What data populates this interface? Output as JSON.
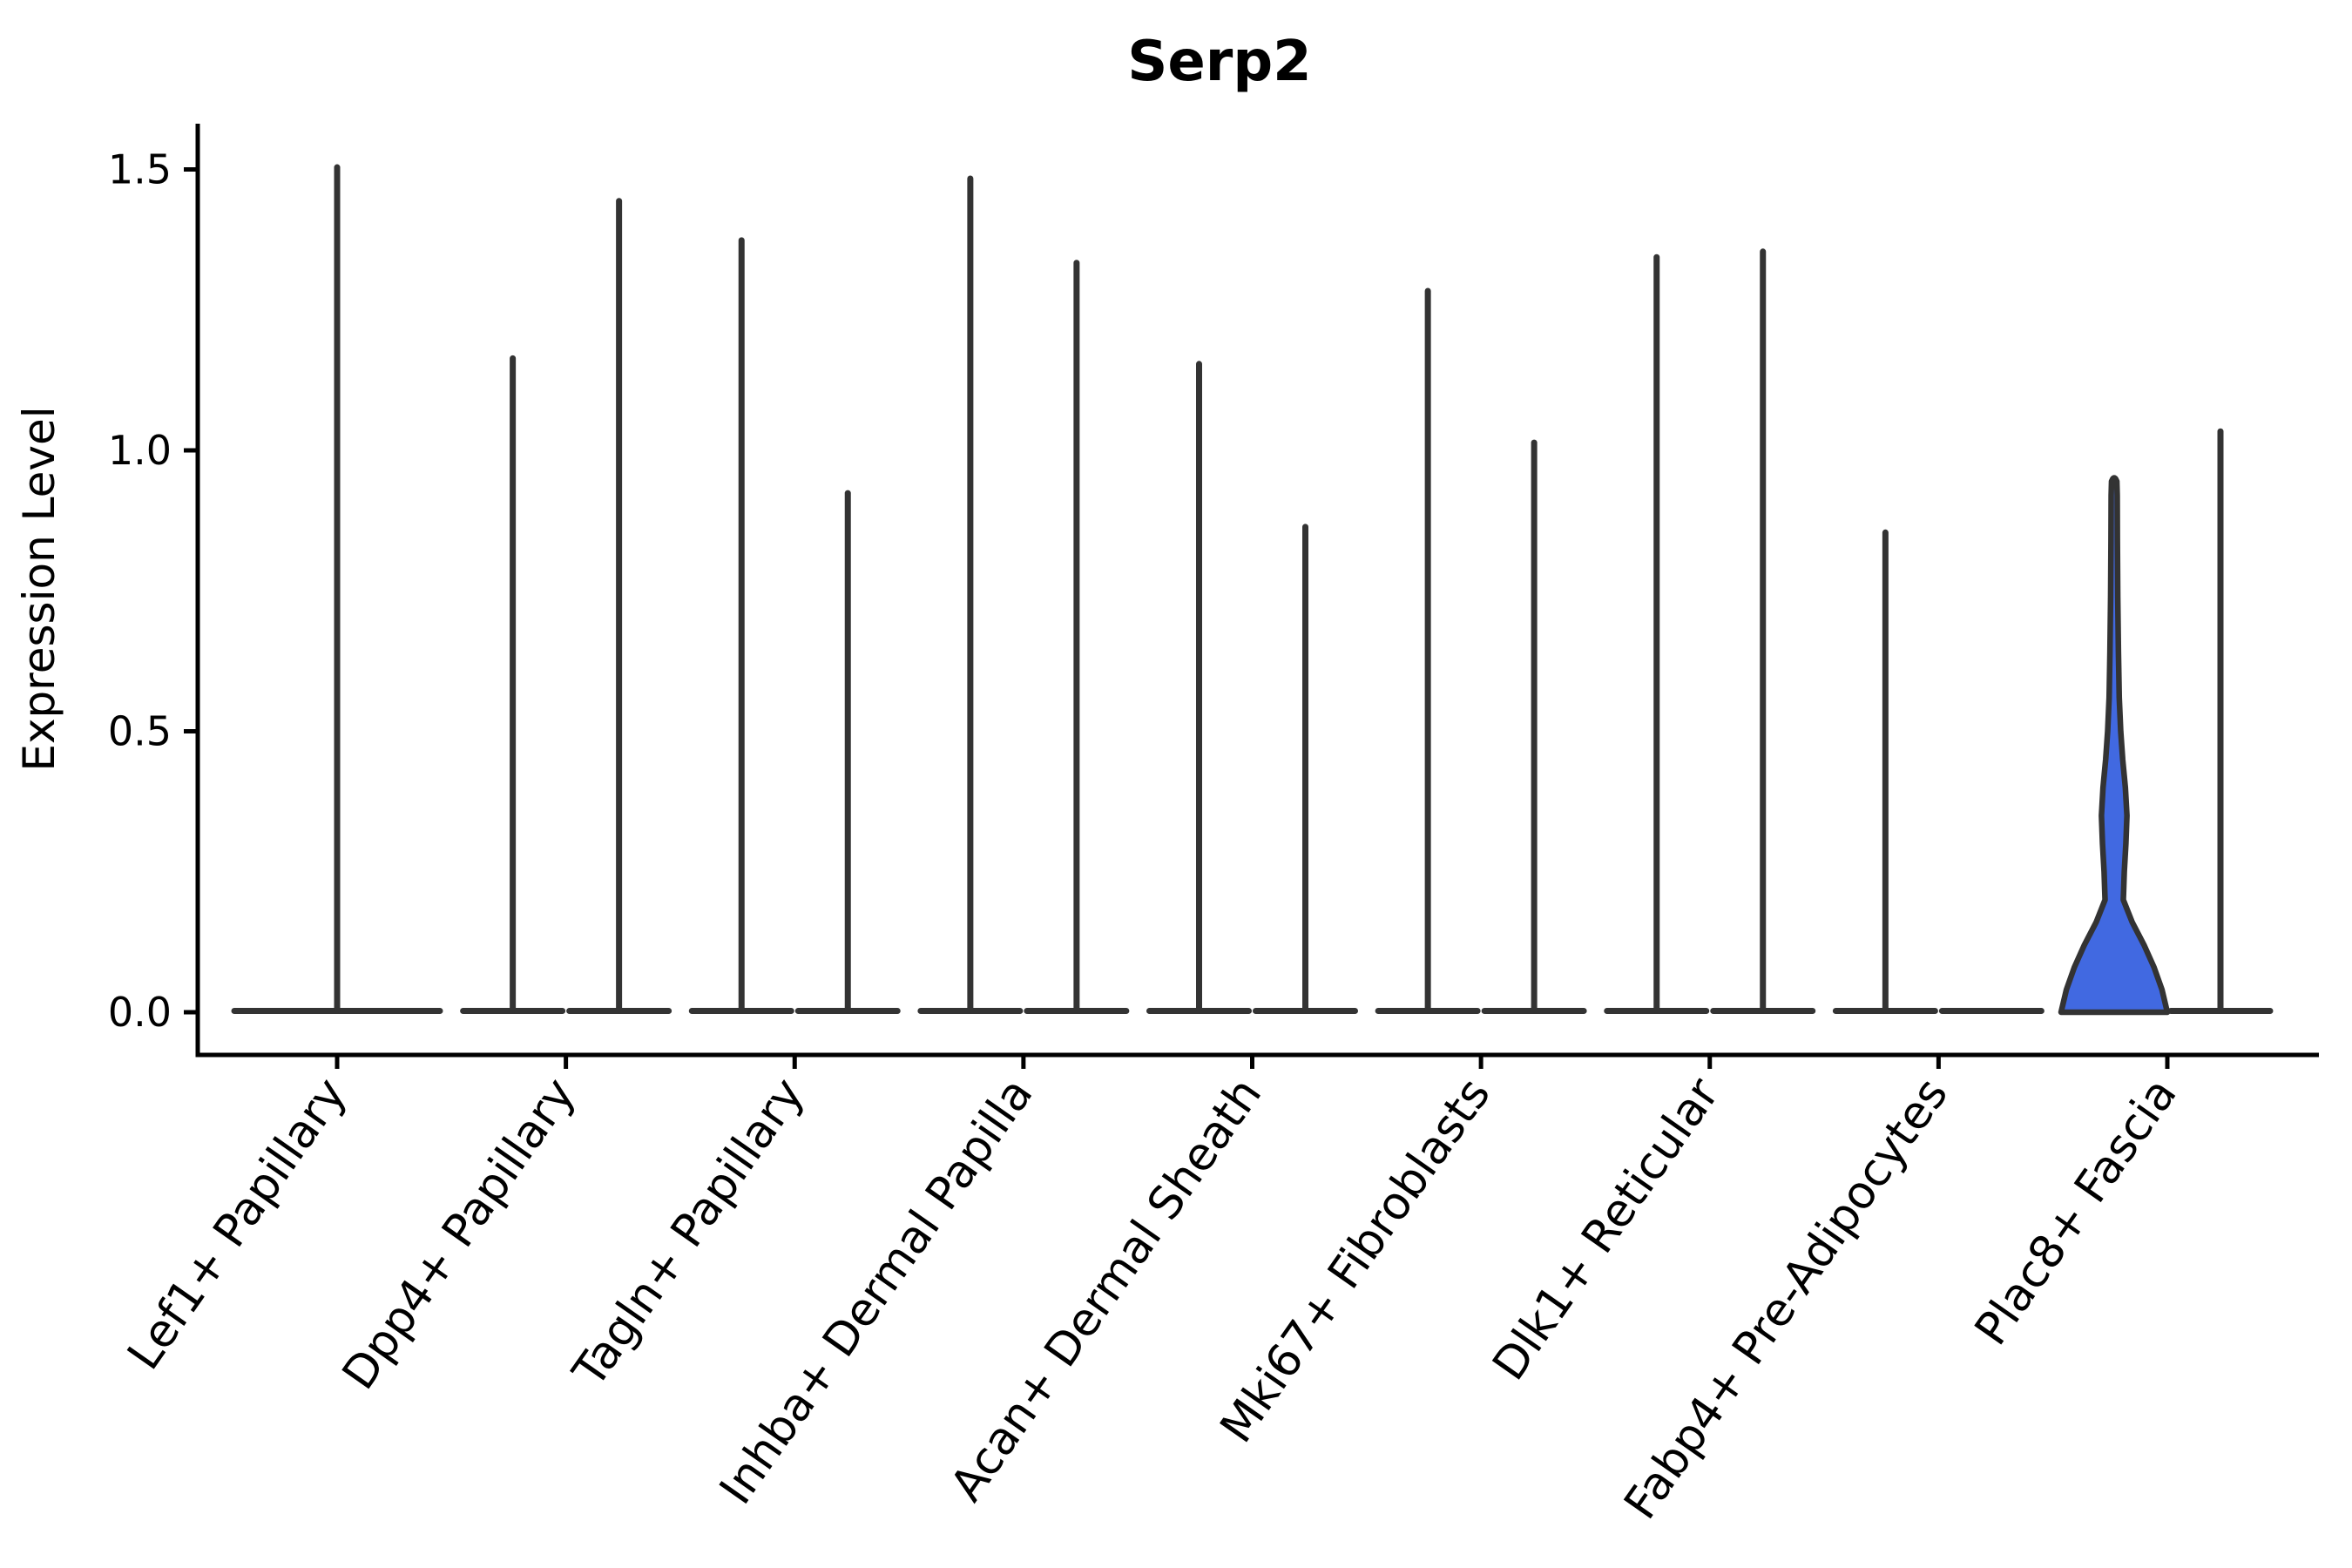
{
  "title": "Serp2",
  "y_axis": {
    "label": "Expression Level",
    "tick_labels": [
      "0.0",
      "0.5",
      "1.0",
      "1.5"
    ],
    "tick_values": [
      0.0,
      0.5,
      1.0,
      1.5
    ]
  },
  "colors": {
    "violin_fill_accent": "#4169E1",
    "violin_outline": "#333333",
    "axis_color": "#000000",
    "background": "#ffffff"
  },
  "chart_data": {
    "type": "violin",
    "title": "Serp2",
    "xlabel": "",
    "ylabel": "Expression Level",
    "ylim": [
      0,
      1.58
    ],
    "grid": false,
    "legend_position": "none",
    "x_tick_rotation_deg": 55,
    "categories": [
      "Lef1+ Papillary",
      "Dpp4+ Papillary",
      "Tagln+ Papillary",
      "Inhba+ Dermal Papilla",
      "Acan+ Dermal Sheath",
      "Mki67+ Fibroblasts",
      "Dlk1+ Reticular",
      "Fabp4+ Pre-Adipocytes",
      "Plac8+ Fascia"
    ],
    "violin_description": "Each category shows dodged violins collapsed to a flat base at expression 0 with a thin vertical spike up to the maximum expression value; Lef1+ Papillary has a single full-width violin; Fabp4+ Pre-Adipocytes right violin is flat (max 0); Plac8+ Fascia left violin has a visible filled body.",
    "violins": [
      {
        "category_index": 0,
        "position": "center",
        "max_expression": 1.51,
        "filled": false
      },
      {
        "category_index": 1,
        "position": "left",
        "max_expression": 1.17,
        "filled": false
      },
      {
        "category_index": 1,
        "position": "right",
        "max_expression": 1.45,
        "filled": false
      },
      {
        "category_index": 2,
        "position": "left",
        "max_expression": 1.38,
        "filled": false
      },
      {
        "category_index": 2,
        "position": "right",
        "max_expression": 0.93,
        "filled": false
      },
      {
        "category_index": 3,
        "position": "left",
        "max_expression": 1.49,
        "filled": false
      },
      {
        "category_index": 3,
        "position": "right",
        "max_expression": 1.34,
        "filled": false
      },
      {
        "category_index": 4,
        "position": "left",
        "max_expression": 1.16,
        "filled": false
      },
      {
        "category_index": 4,
        "position": "right",
        "max_expression": 0.87,
        "filled": false
      },
      {
        "category_index": 5,
        "position": "left",
        "max_expression": 1.29,
        "filled": false
      },
      {
        "category_index": 5,
        "position": "right",
        "max_expression": 1.02,
        "filled": false
      },
      {
        "category_index": 6,
        "position": "left",
        "max_expression": 1.35,
        "filled": false
      },
      {
        "category_index": 6,
        "position": "right",
        "max_expression": 1.36,
        "filled": false
      },
      {
        "category_index": 7,
        "position": "left",
        "max_expression": 0.86,
        "filled": false
      },
      {
        "category_index": 7,
        "position": "right",
        "max_expression": 0.0,
        "filled": false
      },
      {
        "category_index": 8,
        "position": "left",
        "max_expression": 0.945,
        "filled": true,
        "body_profile": [
          [
            0.0,
            1.0
          ],
          [
            0.04,
            0.9
          ],
          [
            0.08,
            0.75
          ],
          [
            0.12,
            0.56
          ],
          [
            0.16,
            0.34
          ],
          [
            0.2,
            0.172
          ],
          [
            0.25,
            0.19
          ],
          [
            0.3,
            0.22
          ],
          [
            0.35,
            0.24
          ],
          [
            0.4,
            0.21
          ],
          [
            0.45,
            0.16
          ],
          [
            0.5,
            0.123
          ],
          [
            0.56,
            0.095
          ],
          [
            0.64,
            0.08
          ],
          [
            0.74,
            0.067
          ],
          [
            0.84,
            0.06
          ],
          [
            0.92,
            0.057
          ],
          [
            0.945,
            0.05
          ]
        ]
      },
      {
        "category_index": 8,
        "position": "right",
        "max_expression": 1.04,
        "filled": false
      }
    ]
  }
}
